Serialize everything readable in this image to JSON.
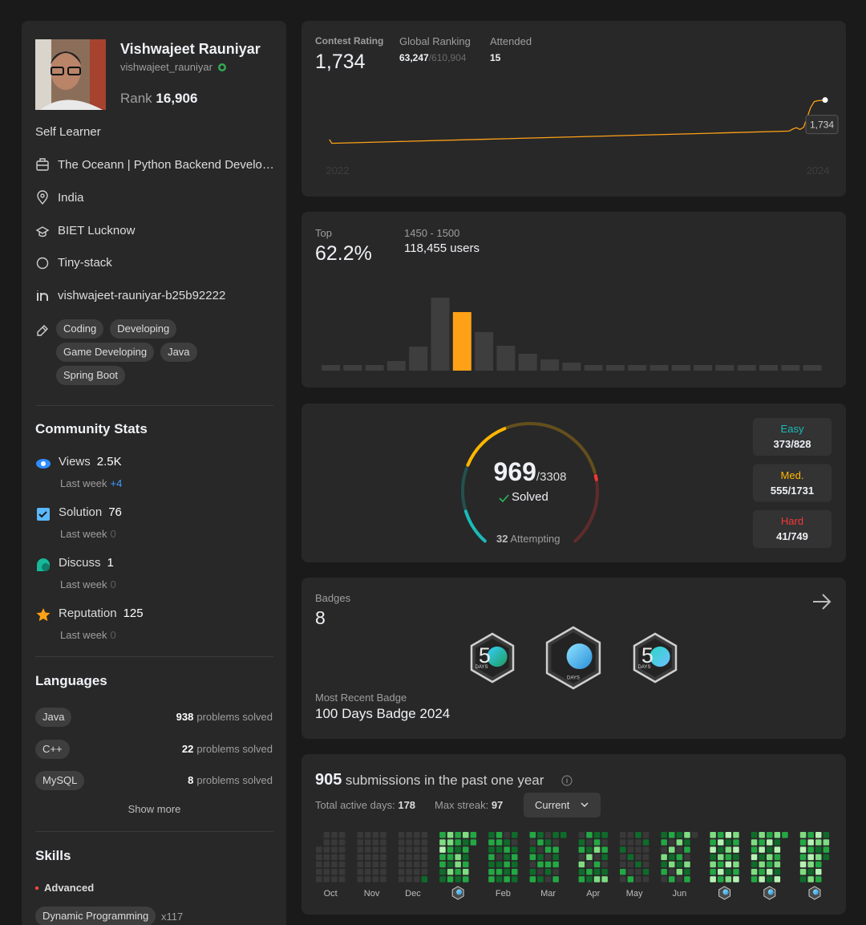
{
  "profile": {
    "name": "Vishwajeet Rauniyar",
    "username": "vishwajeet_rauniyar",
    "rank_label": "Rank",
    "rank": "16,906",
    "about": "Self Learner",
    "company": "The Oceann | Python Backend Develo…",
    "location": "India",
    "school": "BIET Lucknow",
    "github": "Tiny-stack",
    "linkedin": "vishwajeet-rauniyar-b25b92222",
    "tags": [
      "Coding",
      "Developing",
      "Game Developing",
      "Java",
      "Spring Boot"
    ]
  },
  "community_stats": {
    "title": "Community Stats",
    "items": [
      {
        "label": "Views",
        "value": "2.5K",
        "last_week_label": "Last week",
        "last_week": "+4"
      },
      {
        "label": "Solution",
        "value": 76,
        "last_week_label": "Last week",
        "last_week": 0
      },
      {
        "label": "Discuss",
        "value": 1,
        "last_week_label": "Last week",
        "last_week": 0
      },
      {
        "label": "Reputation",
        "value": 125,
        "last_week_label": "Last week",
        "last_week": 0
      }
    ]
  },
  "languages": {
    "title": "Languages",
    "suffix": "problems solved",
    "items": [
      {
        "name": "Java",
        "count": 938
      },
      {
        "name": "C++",
        "count": 22
      },
      {
        "name": "MySQL",
        "count": 8
      }
    ],
    "show_more": "Show more"
  },
  "skills": {
    "title": "Skills",
    "level": "Advanced",
    "items": [
      {
        "name": "Dynamic Programming",
        "count": "x117"
      }
    ]
  },
  "contest": {
    "rating_label": "Contest Rating",
    "rating": "1,734",
    "ranking_label": "Global Ranking",
    "ranking": "63,247",
    "separator": "/",
    "ranking_total": "610,904",
    "attended_label": "Attended",
    "attended": 15,
    "rating_chart": {
      "type": "line",
      "color": "#ffa116",
      "x": [
        2021.966,
        2021.976,
        2022.6,
        2023.2,
        2023.6,
        2023.88,
        2023.895,
        2023.91,
        2023.925,
        2023.94,
        2023.955,
        2023.97,
        2023.985,
        2024.0,
        2024.03
      ],
      "values": [
        1500,
        1478,
        1501,
        1524,
        1539,
        1550,
        1562,
        1570,
        1560,
        1572,
        1630,
        1690,
        1725,
        1730,
        1734
      ],
      "xlim": [
        2021.93,
        2024.05
      ],
      "ylim": [
        1400,
        1780
      ],
      "xticks": [
        2022,
        2024
      ],
      "tooltip": "1,734"
    }
  },
  "distribution": {
    "top_label": "Top",
    "top": "62.2%",
    "range": "1450 - 1500",
    "users": "118,455 users",
    "chart": {
      "type": "bar",
      "values": [
        7,
        7,
        7,
        12,
        30,
        91,
        73,
        48,
        31,
        21,
        14,
        10,
        7,
        7,
        7,
        7,
        7,
        7,
        7,
        7,
        7,
        7,
        7
      ],
      "ylim": [
        0,
        91
      ],
      "color": "#3e3e3e",
      "highlight": 6,
      "highlight_color": "#ffa116"
    }
  },
  "solved": {
    "solved": 969,
    "separator": "/",
    "total": 3308,
    "solved_label": "Solved",
    "attempting": 32,
    "attempting_label": "Attempting",
    "levels": [
      {
        "name": "Easy",
        "solved": 373,
        "total": 828,
        "color": "#1cbaba"
      },
      {
        "name": "Med.",
        "solved": 555,
        "total": 1731,
        "color": "#ffb700"
      },
      {
        "name": "Hard",
        "solved": 41,
        "total": 749,
        "color": "#f63737"
      }
    ]
  },
  "badges": {
    "title": "Badges",
    "count": 8,
    "recent_label": "Most Recent Badge",
    "recent": "100 Days Badge 2024",
    "items": [
      {
        "digits": "5",
        "caption": "DAYS"
      },
      {
        "caption": "DAYS"
      },
      {
        "digits": "5",
        "caption": "DAYS"
      }
    ]
  },
  "submissions": {
    "count": 905,
    "title": "submissions in the past one year",
    "active_label": "Total active days:",
    "active": 178,
    "streak_label": "Max streak:",
    "streak": 97,
    "select": "Current",
    "colors": [
      "#393939",
      "#0e6b2a",
      "#23a844",
      "#7fdc82",
      "#b7f2b5"
    ],
    "months": [
      {
        "label": "Oct",
        "weeks": [
          [
            null,
            null,
            0,
            0,
            0,
            0,
            0
          ],
          [
            0,
            0,
            0,
            0,
            0,
            0,
            0
          ],
          [
            0,
            0,
            0,
            0,
            0,
            0,
            0
          ],
          [
            0,
            0,
            0,
            0,
            0,
            0,
            0
          ]
        ]
      },
      {
        "label": "Nov",
        "weeks": [
          [
            0,
            0,
            0,
            0,
            0,
            0,
            0
          ],
          [
            0,
            0,
            0,
            0,
            0,
            0,
            0
          ],
          [
            0,
            0,
            0,
            0,
            0,
            0,
            0
          ],
          [
            0,
            0,
            0,
            0,
            0,
            0,
            0
          ]
        ]
      },
      {
        "label": "Dec",
        "weeks": [
          [
            0,
            0,
            0,
            0,
            0,
            0,
            0
          ],
          [
            0,
            0,
            0,
            0,
            0,
            0,
            0
          ],
          [
            0,
            0,
            0,
            0,
            0,
            0,
            0
          ],
          [
            0,
            0,
            0,
            0,
            0,
            0,
            1
          ]
        ]
      },
      {
        "label": null,
        "weeks": [
          [
            2,
            3,
            4,
            2,
            2,
            1,
            1
          ],
          [
            3,
            3,
            2,
            2,
            1,
            3,
            2
          ],
          [
            2,
            2,
            1,
            3,
            3,
            2,
            1
          ],
          [
            3,
            1,
            2,
            1,
            2,
            3,
            2
          ],
          [
            2,
            2,
            null,
            null,
            null,
            null,
            null
          ]
        ]
      },
      {
        "label": "Feb",
        "weeks": [
          [
            1,
            2,
            1,
            2,
            1,
            2,
            2
          ],
          [
            2,
            2,
            1,
            0,
            1,
            2,
            1
          ],
          [
            0,
            1,
            2,
            1,
            2,
            1,
            2
          ],
          [
            1,
            0,
            1,
            2,
            1,
            2,
            1
          ]
        ]
      },
      {
        "label": "Mar",
        "weeks": [
          [
            2,
            0,
            1,
            2,
            0,
            1,
            2
          ],
          [
            1,
            2,
            0,
            1,
            2,
            0,
            1
          ],
          [
            0,
            1,
            2,
            0,
            2,
            1,
            0
          ],
          [
            1,
            0,
            2,
            1,
            2,
            0,
            2
          ],
          [
            1,
            null,
            null,
            null,
            null,
            null,
            null
          ]
        ]
      },
      {
        "label": "Apr",
        "weeks": [
          [
            0,
            1,
            2,
            0,
            3,
            1,
            2
          ],
          [
            2,
            0,
            1,
            3,
            0,
            2,
            1
          ],
          [
            1,
            2,
            3,
            0,
            2,
            1,
            3
          ],
          [
            1,
            0,
            2,
            1,
            0,
            1,
            3
          ]
        ]
      },
      {
        "label": "May",
        "weeks": [
          [
            0,
            0,
            1,
            0,
            0,
            2,
            0
          ],
          [
            0,
            0,
            0,
            1,
            0,
            0,
            2
          ],
          [
            1,
            0,
            0,
            0,
            1,
            0,
            0
          ],
          [
            0,
            1,
            0,
            0,
            0,
            1,
            0
          ]
        ]
      },
      {
        "label": "Jun",
        "weeks": [
          [
            1,
            2,
            0,
            3,
            1,
            2,
            0
          ],
          [
            2,
            0,
            3,
            1,
            3,
            0,
            2
          ],
          [
            1,
            3,
            0,
            2,
            1,
            3,
            0
          ],
          [
            3,
            1,
            2,
            0,
            3,
            1,
            2
          ],
          [
            0,
            null,
            null,
            null,
            null,
            null,
            null
          ]
        ]
      },
      {
        "label": null,
        "weeks": [
          [
            3,
            2,
            4,
            1,
            3,
            2,
            4
          ],
          [
            2,
            4,
            1,
            3,
            2,
            4,
            2
          ],
          [
            4,
            1,
            3,
            2,
            4,
            1,
            3
          ],
          [
            3,
            2,
            4,
            1,
            3,
            2,
            4
          ]
        ]
      },
      {
        "label": null,
        "weeks": [
          [
            1,
            3,
            2,
            4,
            1,
            3,
            2
          ],
          [
            3,
            2,
            4,
            1,
            3,
            2,
            4
          ],
          [
            2,
            4,
            1,
            3,
            2,
            4,
            1
          ],
          [
            3,
            1,
            4,
            2,
            3,
            1,
            4
          ],
          [
            2,
            null,
            null,
            null,
            null,
            null,
            null
          ]
        ]
      },
      {
        "label": null,
        "weeks": [
          [
            3,
            2,
            4,
            2,
            4,
            3,
            1
          ],
          [
            2,
            4,
            2,
            4,
            3,
            1,
            3
          ],
          [
            4,
            3,
            1,
            3,
            2,
            4,
            2
          ],
          [
            1,
            3,
            2,
            1,
            null,
            null,
            null
          ]
        ]
      }
    ]
  }
}
